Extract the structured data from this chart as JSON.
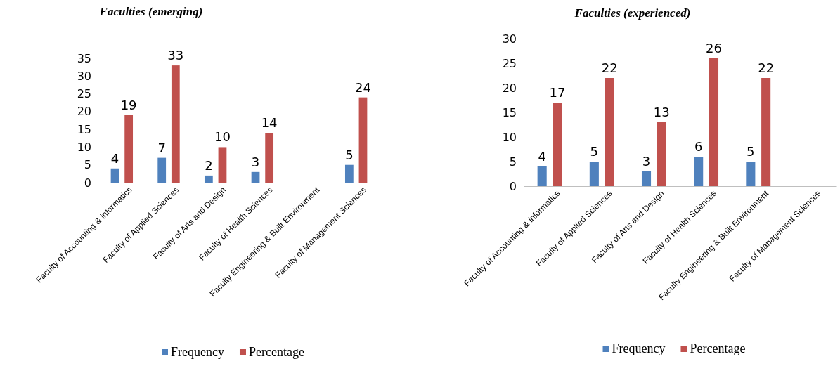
{
  "chart_data": [
    {
      "type": "bar",
      "title": "Faculties (emerging)",
      "categories": [
        "Faculty of Accounting & informatics",
        "Faculty of Applied Sciences",
        "Faculty of Arts and Design",
        "Faculty of Health Sciences",
        "Faculty Engineering & Built Environment",
        "Faculty of Management Sciences"
      ],
      "series": [
        {
          "name": "Frequency",
          "color": "#4f81bd",
          "values": [
            4,
            7,
            2,
            3,
            null,
            5
          ]
        },
        {
          "name": "Percentage",
          "color": "#c0504d",
          "values": [
            19,
            33,
            10,
            14,
            null,
            24
          ]
        }
      ],
      "ylim": [
        0,
        35
      ],
      "yticks": [
        0,
        5,
        10,
        15,
        20,
        25,
        30,
        35
      ],
      "data_labels": true,
      "legend": "bottom",
      "grid": false
    },
    {
      "type": "bar",
      "title": "Faculties (experienced)",
      "categories": [
        "Faculty of Accounting & informatics",
        "Faculty of Applied Sciences",
        "Faculty of Arts and Design",
        "Faculty of Health Sciences",
        "Faculty Engineering & Built Environment",
        "Faculty of Management Sciences"
      ],
      "series": [
        {
          "name": "Frequency",
          "color": "#4f81bd",
          "values": [
            4,
            5,
            3,
            6,
            5,
            null
          ]
        },
        {
          "name": "Percentage",
          "color": "#c0504d",
          "values": [
            17,
            22,
            13,
            26,
            22,
            null
          ]
        }
      ],
      "ylim": [
        0,
        30
      ],
      "yticks": [
        0,
        5,
        10,
        15,
        20,
        25,
        30
      ],
      "data_labels": true,
      "legend": "bottom",
      "grid": false
    }
  ]
}
